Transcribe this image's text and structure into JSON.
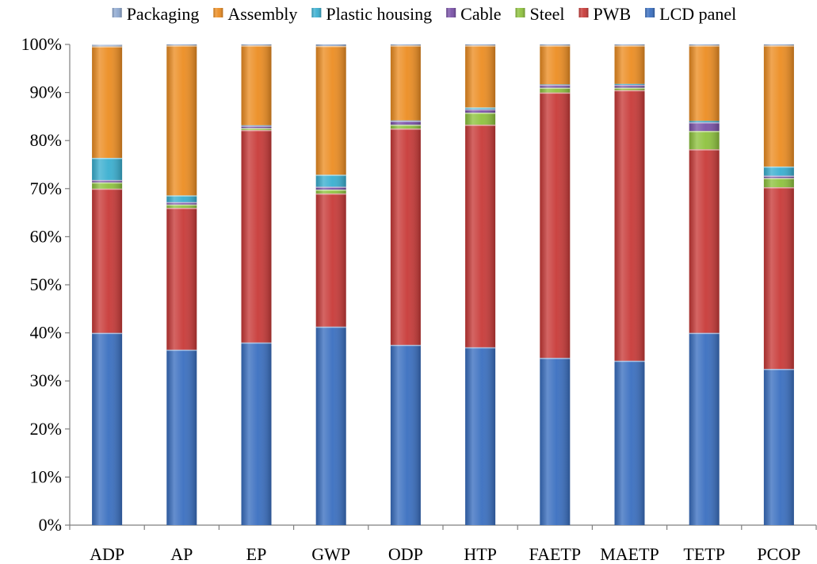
{
  "chart_data": {
    "type": "bar",
    "stacked": true,
    "percent": true,
    "categories": [
      "ADP",
      "AP",
      "EP",
      "GWP",
      "ODP",
      "HTP",
      "FAETP",
      "MAETP",
      "TETP",
      "PCOP"
    ],
    "ylim": [
      0,
      100
    ],
    "yticks": [
      "0%",
      "10%",
      "20%",
      "30%",
      "40%",
      "50%",
      "60%",
      "70%",
      "80%",
      "90%",
      "100%"
    ],
    "legend_position": "top",
    "legend_order": [
      "Packaging",
      "Assembly",
      "Plastic housing",
      "Cable",
      "Steel",
      "PWB",
      "LCD panel"
    ],
    "series": [
      {
        "name": "LCD panel",
        "color": "#3a6fc0",
        "values": [
          40.0,
          36.5,
          38.0,
          41.3,
          37.5,
          37.0,
          34.8,
          34.2,
          40.0,
          32.5
        ]
      },
      {
        "name": "PWB",
        "color": "#c83a38",
        "values": [
          30.0,
          29.5,
          44.2,
          27.7,
          45.0,
          46.3,
          55.2,
          56.3,
          38.2,
          37.8
        ]
      },
      {
        "name": "Steel",
        "color": "#8ec23e",
        "values": [
          1.3,
          0.7,
          0.4,
          0.8,
          0.8,
          2.5,
          1.0,
          0.5,
          3.8,
          1.9
        ]
      },
      {
        "name": "Cable",
        "color": "#7a52a8",
        "values": [
          0.5,
          0.5,
          0.5,
          0.6,
          0.8,
          0.7,
          0.6,
          0.6,
          1.8,
          0.5
        ]
      },
      {
        "name": "Plastic housing",
        "color": "#3aafd0",
        "values": [
          4.6,
          1.4,
          0.1,
          2.5,
          0.1,
          0.4,
          0.1,
          0.2,
          0.3,
          1.9
        ]
      },
      {
        "name": "Assembly",
        "color": "#ec8d22",
        "values": [
          23.2,
          31.2,
          16.6,
          26.8,
          15.6,
          12.9,
          8.1,
          8.0,
          15.7,
          25.2
        ]
      },
      {
        "name": "Packaging",
        "color": "#8ea8d0",
        "values": [
          0.4,
          0.2,
          0.2,
          0.3,
          0.2,
          0.2,
          0.2,
          0.2,
          0.2,
          0.2
        ]
      }
    ]
  }
}
